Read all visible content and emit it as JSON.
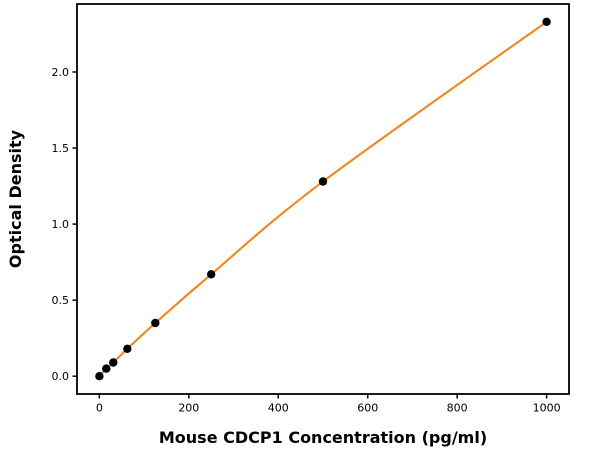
{
  "figure": {
    "background_color": "#ffffff"
  },
  "chart_data": {
    "type": "scatter",
    "title": "",
    "xlabel": "Mouse CDCP1 Concentration (pg/ml)",
    "ylabel": "Optical Density",
    "x": [
      0,
      15.6,
      31.25,
      62.5,
      125,
      250,
      500,
      1000
    ],
    "y": [
      0.0,
      0.05,
      0.09,
      0.18,
      0.35,
      0.67,
      1.28,
      2.33
    ],
    "fit_line": "smooth 4PL-style curve through all points",
    "xlim": [
      -50,
      1050
    ],
    "ylim": [
      -0.117,
      2.447
    ],
    "xticks": [
      0,
      200,
      400,
      600,
      800,
      1000
    ],
    "xtick_labels": [
      "0",
      "200",
      "400",
      "600",
      "800",
      "1000"
    ],
    "yticks": [
      0.0,
      0.5,
      1.0,
      1.5,
      2.0
    ],
    "ytick_labels": [
      "0.0",
      "0.5",
      "1.0",
      "1.5",
      "2.0"
    ],
    "line_color": "#ff7f0e",
    "marker_color": "#000000",
    "axis_color": "#000000",
    "marker": "circle",
    "grid": false,
    "legend_position": "none"
  }
}
